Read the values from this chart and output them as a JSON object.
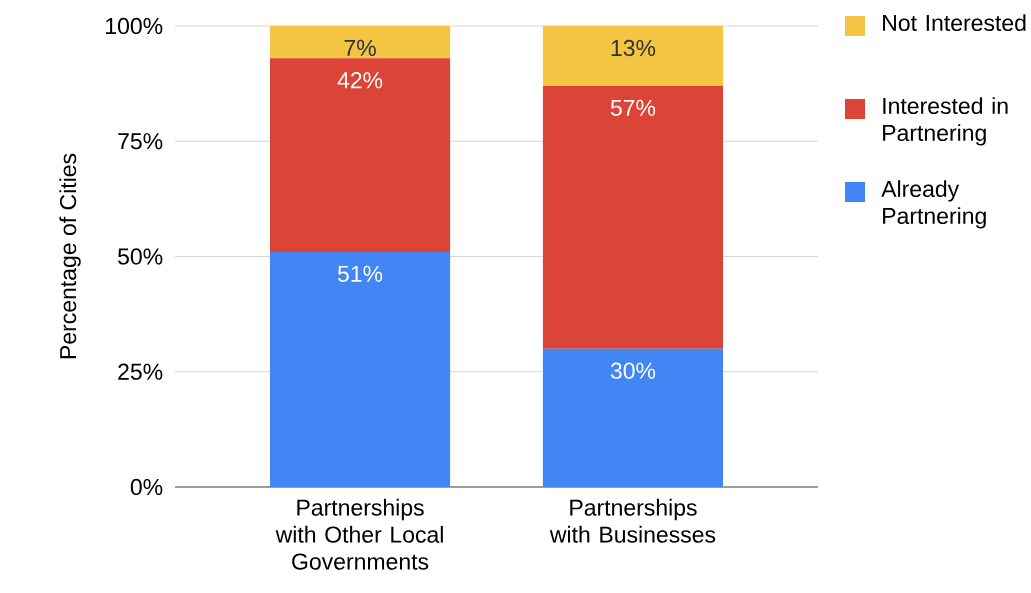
{
  "chart_data": {
    "type": "bar",
    "stacked": true,
    "ylabel": "Percentage of Cities",
    "categories": [
      "Partnerships with Other Local Governments",
      "Partnerships with Businesses"
    ],
    "series": [
      {
        "name": "Already Partnering",
        "color": "#4285f4",
        "values": [
          51,
          30
        ],
        "value_labels": [
          "51%",
          "30%"
        ]
      },
      {
        "name": "Interested in Partnering",
        "color": "#db4437",
        "values": [
          42,
          57
        ],
        "value_labels": [
          "42%",
          "57%"
        ]
      },
      {
        "name": "Not Interested",
        "color": "#f4c542",
        "values": [
          7,
          13
        ],
        "value_labels": [
          "7%",
          "13%"
        ]
      }
    ],
    "ylim": [
      0,
      100
    ],
    "yticks": [
      {
        "value": 0,
        "label": "0%"
      },
      {
        "value": 25,
        "label": "25%"
      },
      {
        "value": 50,
        "label": "50%"
      },
      {
        "value": 75,
        "label": "75%"
      },
      {
        "value": 100,
        "label": "100%"
      }
    ],
    "grid": "y",
    "legend": "right"
  }
}
